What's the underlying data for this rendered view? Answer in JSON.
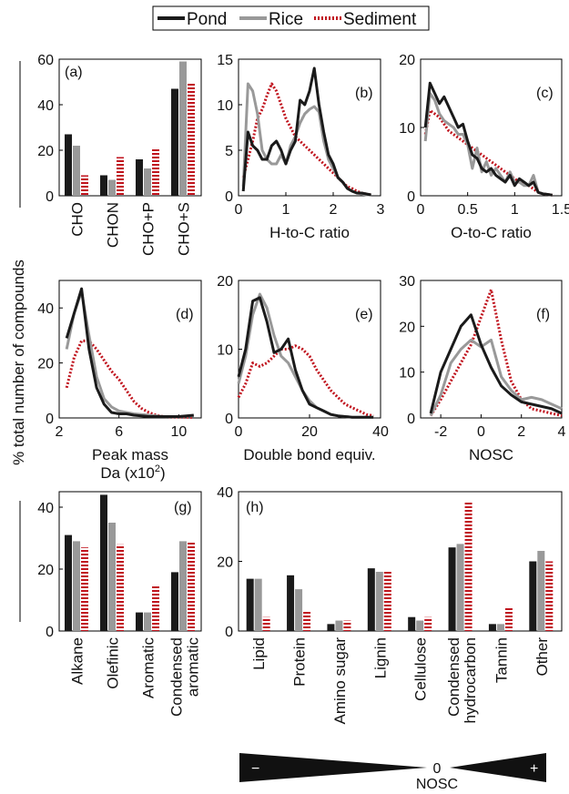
{
  "colors": {
    "pond": "#1a1a1a",
    "rice": "#999999",
    "sediment": "#c0141e"
  },
  "legend": {
    "pond": "Pond",
    "rice": "Rice",
    "sediment": "Sediment"
  },
  "y_axis_label": "% total number of compounds",
  "nosc_bar": {
    "minus": "−",
    "zero": "0",
    "plus": "+",
    "label": "NOSC"
  },
  "chart_data": [
    {
      "id": "a",
      "type": "bar",
      "panel_label": "(a)",
      "categories": [
        "CHO",
        "CHON",
        "CHO+P",
        "CHO+S"
      ],
      "series": [
        {
          "name": "Pond",
          "values": [
            27,
            9,
            16,
            47
          ]
        },
        {
          "name": "Rice",
          "values": [
            22,
            7,
            12,
            59
          ]
        },
        {
          "name": "Sediment",
          "values": [
            9,
            17,
            21,
            50
          ]
        }
      ],
      "ylim": [
        0,
        60
      ],
      "yticks": [
        0,
        20,
        40,
        60
      ]
    },
    {
      "id": "b",
      "type": "line",
      "panel_label": "(b)",
      "xlabel": "H-to-C ratio",
      "xlim": [
        0,
        3
      ],
      "ylim": [
        0,
        15
      ],
      "xticks": [
        0,
        1,
        2,
        3
      ],
      "yticks": [
        0,
        5,
        10,
        15
      ],
      "series": [
        {
          "name": "Pond",
          "x": [
            0.1,
            0.2,
            0.3,
            0.4,
            0.5,
            0.6,
            0.7,
            0.8,
            0.9,
            1.0,
            1.1,
            1.2,
            1.3,
            1.4,
            1.5,
            1.6,
            1.7,
            1.8,
            1.9,
            2.0,
            2.1,
            2.2,
            2.3,
            2.4,
            2.5,
            2.6,
            2.7,
            2.8
          ],
          "y": [
            0.5,
            7,
            5.5,
            5,
            4,
            4,
            5.5,
            6,
            5,
            3.5,
            5,
            6,
            10.5,
            10,
            11.5,
            14,
            10,
            7,
            4.5,
            3.5,
            2,
            1.5,
            0.8,
            0.5,
            0.3,
            0.3,
            0.2,
            0.1
          ]
        },
        {
          "name": "Rice",
          "x": [
            0.1,
            0.2,
            0.3,
            0.4,
            0.5,
            0.6,
            0.7,
            0.8,
            0.9,
            1.0,
            1.1,
            1.2,
            1.3,
            1.4,
            1.5,
            1.6,
            1.7,
            1.8,
            1.9,
            2.0,
            2.1,
            2.2,
            2.3,
            2.4,
            2.5,
            2.6,
            2.7,
            2.8
          ],
          "y": [
            1,
            12.3,
            11.5,
            9,
            5,
            4,
            3.5,
            3.5,
            4.5,
            3.5,
            5.5,
            6.5,
            8,
            9,
            9.5,
            9.8,
            9.2,
            6,
            4,
            3,
            2,
            1.5,
            0.8,
            0.5,
            0.3,
            0.2,
            0.1,
            0.1
          ]
        },
        {
          "name": "Sediment",
          "x": [
            0.1,
            0.2,
            0.3,
            0.4,
            0.5,
            0.6,
            0.7,
            0.8,
            0.9,
            1.0,
            1.1,
            1.2,
            1.3,
            1.4,
            1.5,
            1.6,
            1.7,
            1.8,
            1.9,
            2.0,
            2.1,
            2.2,
            2.3,
            2.4,
            2.5,
            2.6,
            2.7,
            2.8
          ],
          "y": [
            2,
            4,
            6,
            8.5,
            9.5,
            11,
            12.3,
            11.5,
            10,
            8.5,
            7.5,
            6.5,
            6,
            5.5,
            5,
            4.5,
            4,
            3.5,
            3,
            2.5,
            2,
            1.5,
            1,
            0.8,
            0.5,
            0.3,
            0.2,
            0.1
          ]
        }
      ]
    },
    {
      "id": "c",
      "type": "line",
      "panel_label": "(c)",
      "xlabel": "O-to-C ratio",
      "xlim": [
        0,
        1.5
      ],
      "ylim": [
        0,
        20
      ],
      "xticks": [
        0,
        0.5,
        1,
        1.5
      ],
      "xtick_labels": [
        "0",
        "0.5",
        "1",
        "1.5"
      ],
      "yticks": [
        0,
        10,
        20
      ],
      "series": [
        {
          "name": "Pond",
          "x": [
            0.05,
            0.1,
            0.15,
            0.2,
            0.25,
            0.3,
            0.35,
            0.4,
            0.45,
            0.5,
            0.55,
            0.6,
            0.65,
            0.7,
            0.75,
            0.8,
            0.85,
            0.9,
            0.95,
            1.0,
            1.05,
            1.1,
            1.15,
            1.2,
            1.25,
            1.3,
            1.35,
            1.4
          ],
          "y": [
            10,
            16.5,
            15,
            13.5,
            14.5,
            13,
            11.5,
            10,
            10.5,
            8,
            6,
            5.5,
            4,
            3.5,
            4,
            3,
            2.5,
            2,
            3,
            1.5,
            2.5,
            2,
            1.5,
            2,
            0.5,
            0.3,
            0.2,
            0.1
          ]
        },
        {
          "name": "Rice",
          "x": [
            0.05,
            0.1,
            0.15,
            0.2,
            0.25,
            0.3,
            0.35,
            0.4,
            0.45,
            0.5,
            0.55,
            0.6,
            0.65,
            0.7,
            0.75,
            0.8,
            0.85,
            0.9,
            0.95,
            1.0,
            1.05,
            1.1,
            1.15,
            1.2,
            1.25,
            1.3,
            1.35,
            1.4
          ],
          "y": [
            8,
            15,
            14,
            12,
            11,
            10.5,
            10,
            9,
            9,
            7.5,
            4,
            7,
            3.5,
            5,
            3,
            4,
            3,
            2,
            3.5,
            2,
            2,
            1.5,
            1.5,
            3,
            0.5,
            0.3,
            0.2,
            0.1
          ]
        },
        {
          "name": "Sediment",
          "x": [
            0.05,
            0.1,
            0.15,
            0.2,
            0.25,
            0.3,
            0.35,
            0.4,
            0.45,
            0.5,
            0.55,
            0.6,
            0.65,
            0.7,
            0.75,
            0.8,
            0.85,
            0.9,
            0.95,
            1.0,
            1.05,
            1.1,
            1.15,
            1.2,
            1.25,
            1.3,
            1.35,
            1.4
          ],
          "y": [
            9,
            12.5,
            12,
            11.5,
            10.5,
            9.5,
            9,
            8.5,
            8,
            7.5,
            7,
            6.5,
            6,
            5.5,
            5,
            4.5,
            4,
            3.5,
            3,
            2.5,
            2,
            1.8,
            1.5,
            1,
            0.5,
            0.3,
            0.2,
            0.1
          ]
        }
      ]
    },
    {
      "id": "d",
      "type": "line",
      "panel_label": "(d)",
      "xlabel": "Peak mass",
      "xlabel2_prefix": "Da (x10",
      "xlabel2_sup": "2",
      "xlabel2_suffix": ")",
      "xlim": [
        2,
        11.5
      ],
      "ylim": [
        0,
        50
      ],
      "xticks": [
        2,
        6,
        10
      ],
      "yticks": [
        0,
        20,
        40
      ],
      "series": [
        {
          "name": "Pond",
          "x": [
            2.5,
            3,
            3.5,
            4,
            4.5,
            5,
            5.5,
            6,
            6.5,
            7,
            8,
            9,
            10,
            11
          ],
          "y": [
            29,
            38,
            47,
            25,
            11,
            5,
            2,
            1.5,
            1.5,
            1,
            0.5,
            0.5,
            0.5,
            1
          ]
        },
        {
          "name": "Rice",
          "x": [
            2.5,
            3,
            3.5,
            4,
            4.5,
            5,
            5.5,
            6,
            6.5,
            7,
            8,
            9,
            10,
            11
          ],
          "y": [
            25,
            38,
            46,
            30,
            15,
            7,
            4,
            2.5,
            2,
            1.5,
            1,
            0.5,
            0.5,
            0.8
          ]
        },
        {
          "name": "Sediment",
          "x": [
            2.5,
            3,
            3.5,
            4,
            4.5,
            5,
            5.5,
            6,
            6.5,
            7,
            7.5,
            8,
            8.5,
            9,
            10,
            11
          ],
          "y": [
            11,
            22,
            28,
            28,
            25,
            21,
            17,
            14,
            10,
            6,
            3.5,
            2,
            1,
            0.5,
            0.3,
            0.2
          ]
        }
      ]
    },
    {
      "id": "e",
      "type": "line",
      "panel_label": "(e)",
      "xlabel": "Double bond equiv.",
      "xlim": [
        0,
        40
      ],
      "ylim": [
        0,
        20
      ],
      "xticks": [
        0,
        20,
        40
      ],
      "yticks": [
        0,
        10,
        20
      ],
      "series": [
        {
          "name": "Pond",
          "x": [
            0,
            2,
            4,
            6,
            8,
            10,
            12,
            14,
            16,
            18,
            20,
            22,
            24,
            26,
            28,
            30,
            32,
            34,
            36,
            38
          ],
          "y": [
            6,
            10,
            17,
            17.5,
            14,
            9.5,
            10,
            11.5,
            7,
            4,
            2,
            1.5,
            1,
            0.5,
            0.3,
            0.2,
            0.1,
            0.1,
            0.1,
            0.1
          ]
        },
        {
          "name": "Rice",
          "x": [
            0,
            2,
            4,
            6,
            8,
            10,
            12,
            14,
            16,
            18,
            20,
            22,
            24,
            26,
            28,
            30,
            32,
            34,
            36,
            38
          ],
          "y": [
            5,
            9,
            15,
            18,
            16,
            12,
            9,
            8,
            6,
            4,
            2.5,
            1.5,
            1,
            0.5,
            0.3,
            0.2,
            0.1,
            0.1,
            0.1,
            0.1
          ]
        },
        {
          "name": "Sediment",
          "x": [
            0,
            2,
            4,
            6,
            8,
            10,
            12,
            14,
            16,
            18,
            20,
            22,
            24,
            26,
            28,
            30,
            32,
            34,
            36,
            38
          ],
          "y": [
            3,
            5,
            8,
            7.5,
            8,
            9,
            10,
            10,
            10.5,
            10,
            9,
            7,
            5.5,
            4,
            3,
            2,
            1.5,
            1,
            0.5,
            0.3
          ]
        }
      ]
    },
    {
      "id": "f",
      "type": "line",
      "panel_label": "(f)",
      "xlabel": "NOSC",
      "xlim": [
        -3,
        4
      ],
      "ylim": [
        0,
        30
      ],
      "xticks": [
        -2,
        0,
        2,
        4
      ],
      "xtick_labels": [
        "-2",
        "0",
        "2",
        "4"
      ],
      "yticks": [
        0,
        10,
        20,
        30
      ],
      "series": [
        {
          "name": "Pond",
          "x": [
            -2.5,
            -2,
            -1.5,
            -1,
            -0.5,
            0,
            0.5,
            1,
            1.5,
            2,
            2.5,
            3,
            3.5,
            4
          ],
          "y": [
            1,
            10,
            15,
            20,
            22.5,
            16,
            11,
            7,
            5,
            3.5,
            3,
            2.5,
            2,
            1
          ]
        },
        {
          "name": "Rice",
          "x": [
            -2.5,
            -2,
            -1.5,
            -1,
            -0.5,
            0,
            0.5,
            1,
            1.5,
            2,
            2.5,
            3,
            3.5,
            4
          ],
          "y": [
            0.5,
            5,
            12,
            15,
            17,
            15.5,
            17,
            9,
            6,
            4,
            4.5,
            4,
            3,
            2
          ]
        },
        {
          "name": "Sediment",
          "x": [
            -2.5,
            -2,
            -1.5,
            -1,
            -0.5,
            0,
            0.5,
            1,
            1.5,
            2,
            2.5,
            3,
            3.5,
            4
          ],
          "y": [
            0.5,
            4,
            8,
            12,
            16,
            22,
            28,
            17,
            8,
            4,
            2,
            1.5,
            1,
            0.5
          ]
        }
      ]
    },
    {
      "id": "g",
      "type": "bar",
      "panel_label": "(g)",
      "categories": [
        "Alkane",
        "Olefinic",
        "Aromatic",
        "Condensed\naromatic"
      ],
      "series": [
        {
          "name": "Pond",
          "values": [
            31,
            44,
            6,
            19
          ]
        },
        {
          "name": "Rice",
          "values": [
            29,
            35,
            6,
            29
          ]
        },
        {
          "name": "Sediment",
          "values": [
            27,
            28,
            15,
            29
          ]
        }
      ],
      "ylim": [
        0,
        45
      ],
      "yticks": [
        0,
        20,
        40
      ]
    },
    {
      "id": "h",
      "type": "bar",
      "panel_label": "(h)",
      "categories": [
        "Lipid",
        "Protein",
        "Amino sugar",
        "Lignin",
        "Cellulose",
        "Condensed\nhydrocarbon",
        "Tannin",
        "Other"
      ],
      "series": [
        {
          "name": "Pond",
          "values": [
            15,
            16,
            2,
            18,
            4,
            24,
            2,
            20
          ]
        },
        {
          "name": "Rice",
          "values": [
            15,
            12,
            3,
            17,
            3,
            25,
            2,
            23
          ]
        },
        {
          "name": "Sediment",
          "values": [
            4,
            6,
            3,
            17,
            4,
            37,
            7,
            20
          ]
        }
      ],
      "ylim": [
        0,
        40
      ],
      "yticks": [
        0,
        20,
        40
      ]
    }
  ]
}
